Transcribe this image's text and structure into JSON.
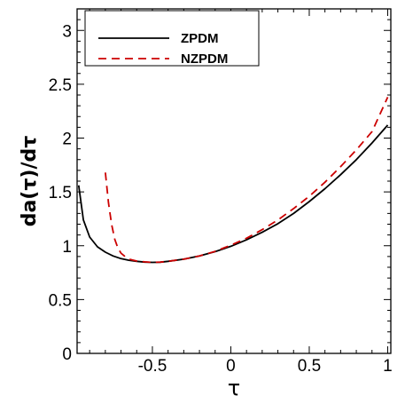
{
  "chart_data": {
    "type": "line",
    "xlabel": "τ",
    "ylabel": "da(τ)/dτ",
    "xlim": [
      -0.98,
      1.02
    ],
    "ylim": [
      0,
      3.2
    ],
    "xticks": [
      -0.5,
      0,
      0.5,
      1
    ],
    "xtick_labels": [
      "-0.5",
      "0",
      "0.5",
      "1"
    ],
    "yticks": [
      0,
      0.5,
      1,
      1.5,
      2,
      2.5,
      3
    ],
    "ytick_labels": [
      "0",
      "0.5",
      "1",
      "1.5",
      "2",
      "2.5",
      "3"
    ],
    "grid": false,
    "legend_position": "top-left",
    "series": [
      {
        "name": "ZPDM",
        "color": "#000000",
        "dash": "solid",
        "x": [
          -0.97,
          -0.94,
          -0.9,
          -0.85,
          -0.8,
          -0.75,
          -0.7,
          -0.65,
          -0.6,
          -0.55,
          -0.5,
          -0.45,
          -0.4,
          -0.3,
          -0.2,
          -0.1,
          0,
          0.1,
          0.2,
          0.3,
          0.4,
          0.5,
          0.6,
          0.7,
          0.8,
          0.9,
          1.0
        ],
        "y": [
          1.56,
          1.24,
          1.08,
          0.99,
          0.94,
          0.905,
          0.88,
          0.865,
          0.855,
          0.848,
          0.845,
          0.847,
          0.855,
          0.875,
          0.905,
          0.945,
          0.995,
          1.055,
          1.125,
          1.205,
          1.3,
          1.41,
          1.53,
          1.66,
          1.8,
          1.955,
          2.12
        ]
      },
      {
        "name": "NZPDM",
        "color": "#cc0000",
        "dash": "dashed",
        "x": [
          -0.8,
          -0.78,
          -0.76,
          -0.74,
          -0.72,
          -0.7,
          -0.67,
          -0.64,
          -0.6,
          -0.55,
          -0.5,
          -0.45,
          -0.4,
          -0.3,
          -0.2,
          -0.1,
          0,
          0.1,
          0.2,
          0.3,
          0.4,
          0.5,
          0.6,
          0.7,
          0.8,
          0.9,
          1.0
        ],
        "y": [
          1.68,
          1.4,
          1.2,
          1.06,
          0.98,
          0.93,
          0.895,
          0.872,
          0.858,
          0.85,
          0.845,
          0.848,
          0.855,
          0.875,
          0.905,
          0.948,
          1.005,
          1.07,
          1.15,
          1.24,
          1.345,
          1.46,
          1.59,
          1.735,
          1.89,
          2.06,
          2.38
        ]
      }
    ]
  }
}
